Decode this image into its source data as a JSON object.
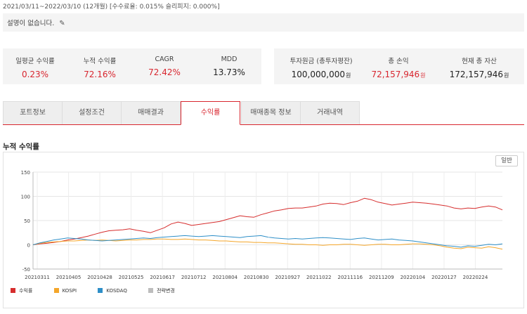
{
  "header": {
    "period": "2021/03/11~2022/03/10 (12개월) [수수료율: 0.015% 슬리피지: 0.000%]",
    "description": "설명이 없습니다."
  },
  "stats_left": [
    {
      "label": "일평균 수익률",
      "value": "0.23%",
      "red": true
    },
    {
      "label": "누적 수익률",
      "value": "72.16%",
      "red": true
    },
    {
      "label": "CAGR",
      "value": "72.42%",
      "red": true
    },
    {
      "label": "MDD",
      "value": "13.73%",
      "red": false
    }
  ],
  "stats_right": [
    {
      "label": "투자원금 (총투자평잔)",
      "value": "100,000,000",
      "unit": "원",
      "red": false
    },
    {
      "label": "총 손익",
      "value": "72,157,946",
      "unit": "원",
      "red": true
    },
    {
      "label": "현재 총 자산",
      "value": "172,157,946",
      "unit": "원",
      "red": false
    }
  ],
  "tabs": [
    {
      "label": "포트정보",
      "active": false
    },
    {
      "label": "설정조건",
      "active": false
    },
    {
      "label": "매매결과",
      "active": false
    },
    {
      "label": "수익률",
      "active": true
    },
    {
      "label": "매매종목 정보",
      "active": false
    },
    {
      "label": "거래내역",
      "active": false
    }
  ],
  "chart_section": {
    "title": "누적 수익률",
    "toggle_label": "일반"
  },
  "colors": {
    "accent": "#d8262f",
    "returns": "#d62d2d",
    "kospi": "#f4a62a",
    "kosdaq": "#2e8fc8",
    "rebalance": "#bdbdbd"
  },
  "chart_data": {
    "type": "line",
    "title": "",
    "xlabel": "",
    "ylabel": "",
    "ylim": [
      -50,
      150
    ],
    "yticks": [
      150,
      100,
      50,
      0,
      -50
    ],
    "grid": true,
    "legend": "bottom-left",
    "x_tick_labels": [
      "20210311",
      "20210405",
      "20210428",
      "20210525",
      "20210617",
      "20210712",
      "20210804",
      "20210830",
      "20210927",
      "20211022",
      "20211116",
      "20211209",
      "20220104",
      "20220127",
      "20220224"
    ],
    "series": [
      {
        "name": "수익률",
        "color": "#d62d2d",
        "values": [
          0,
          2,
          3,
          5,
          7,
          10,
          12,
          15,
          18,
          22,
          26,
          29,
          30,
          31,
          33,
          30,
          28,
          25,
          30,
          35,
          43,
          47,
          44,
          40,
          42,
          44,
          46,
          48,
          52,
          56,
          60,
          58,
          57,
          62,
          66,
          70,
          72,
          75,
          76,
          76,
          78,
          80,
          84,
          86,
          85,
          83,
          87,
          90,
          96,
          93,
          88,
          85,
          82,
          84,
          86,
          88,
          87,
          86,
          84,
          82,
          80,
          76,
          74,
          76,
          75,
          78,
          80,
          78,
          72
        ]
      },
      {
        "name": "KOSPI",
        "color": "#f4a62a",
        "values": [
          0,
          3,
          5,
          6,
          7,
          8,
          8,
          9,
          10,
          9,
          10,
          9,
          8,
          9,
          10,
          10,
          11,
          11,
          12,
          12,
          11,
          11,
          12,
          11,
          10,
          10,
          9,
          8,
          8,
          7,
          6,
          6,
          5,
          5,
          4,
          4,
          3,
          2,
          1,
          1,
          0,
          0,
          -1,
          0,
          0,
          1,
          1,
          0,
          -1,
          0,
          1,
          1,
          0,
          0,
          1,
          2,
          2,
          1,
          0,
          -2,
          -5,
          -7,
          -8,
          -5,
          -6,
          -7,
          -4,
          -6,
          -9
        ]
      },
      {
        "name": "KOSDAQ",
        "color": "#2e8fc8",
        "values": [
          0,
          4,
          7,
          10,
          12,
          14,
          13,
          12,
          10,
          9,
          8,
          9,
          10,
          11,
          12,
          13,
          14,
          13,
          15,
          16,
          17,
          18,
          19,
          18,
          17,
          18,
          19,
          18,
          17,
          16,
          15,
          17,
          18,
          19,
          16,
          14,
          13,
          12,
          13,
          12,
          13,
          14,
          15,
          14,
          13,
          12,
          11,
          13,
          14,
          12,
          10,
          11,
          12,
          10,
          9,
          8,
          6,
          4,
          2,
          0,
          -2,
          -3,
          -5,
          -2,
          -3,
          -1,
          1,
          0,
          2
        ]
      },
      {
        "name": "전략변경",
        "color": "#bdbdbd",
        "values": []
      }
    ]
  }
}
